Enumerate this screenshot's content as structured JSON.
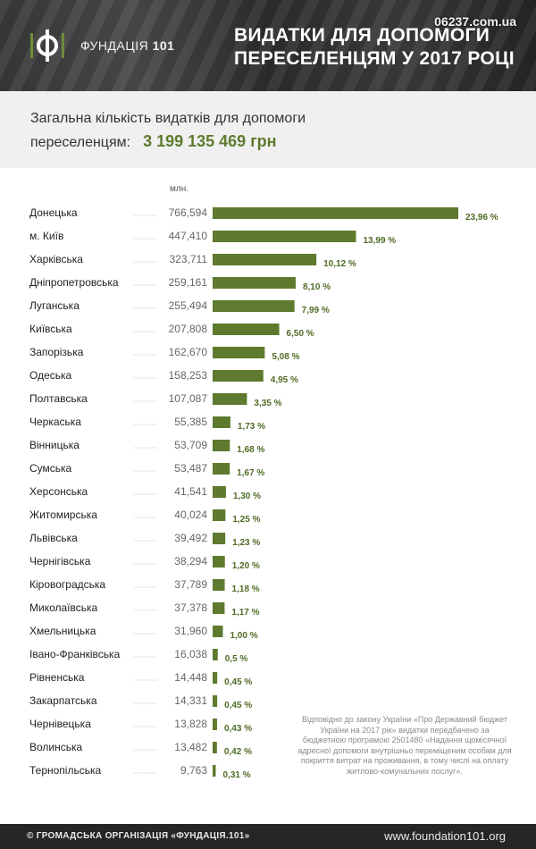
{
  "header": {
    "logo_text": "ФУНДАЦІЯ",
    "logo_number": "101",
    "title_line1": "ВИДАТКИ ДЛЯ ДОПОМОГИ",
    "title_line2": "ПЕРЕСЕЛЕНЦЯМ У 2017 РОЦІ",
    "source_badge": "06237.com.ua"
  },
  "summary": {
    "line1": "Загальна кількість видатків для допомоги",
    "line2": "переселенцям:",
    "total": "3 199 135 469 грн"
  },
  "note": "Відповідно до закону України «Про Державний бюджет України на 2017 рік» видатки передбачено за бюджетною програмою 2501480 «Надання щомісячної адресної допомоги внутрішньо переміщеним особам для покриття витрат на проживання, в тому числі на оплату житлово-комунальних послуг».",
  "footer": {
    "left": "© ГРОМАДСЬКА ОРГАНІЗАЦІЯ «ФУНДАЦІЯ.101»",
    "right": "www.foundation101.org"
  },
  "colors": {
    "bar": "#5d7a2e",
    "percent_text": "#4f6b26",
    "header_bg": "#3a3a3a",
    "summary_bg": "#f0f0f0"
  },
  "chart_data": {
    "type": "bar",
    "orientation": "horizontal",
    "unit_label": "млн.",
    "categories": [
      "Донецька",
      "м. Київ",
      "Харківська",
      "Дніпропетровська",
      "Луганська",
      "Київська",
      "Запорізька",
      "Одеська",
      "Полтавська",
      "Черкаська",
      "Вінницька",
      "Сумська",
      "Херсонська",
      "Житомирська",
      "Львівська",
      "Чернігівська",
      "Кіровоградська",
      "Миколаївська",
      "Хмельницька",
      "Івано-Франківська",
      "Рівненська",
      "Закарпатська",
      "Чернівецька",
      "Волинська",
      "Тернопільська"
    ],
    "values": [
      766.594,
      447.41,
      323.711,
      259.161,
      255.494,
      207.808,
      162.67,
      158.253,
      107.087,
      55.385,
      53.709,
      53.487,
      41.541,
      40.024,
      39.492,
      38.294,
      37.789,
      37.378,
      31.96,
      16.038,
      14.448,
      14.331,
      13.828,
      13.482,
      9.763
    ],
    "value_labels": [
      "766,594",
      "447,410",
      "323,711",
      "259,161",
      "255,494",
      "207,808",
      "162,670",
      "158,253",
      "107,087",
      "55,385",
      "53,709",
      "53,487",
      "41,541",
      "40,024",
      "39,492",
      "38,294",
      "37,789",
      "37,378",
      "31,960",
      "16,038",
      "14,448",
      "14,331",
      "13,828",
      "13,482",
      "9,763"
    ],
    "percent_labels": [
      "23,96 %",
      "13,99 %",
      "10,12 %",
      "8,10 %",
      "7,99 %",
      "6,50 %",
      "5,08 %",
      "4,95 %",
      "3,35 %",
      "1,73 %",
      "1,68 %",
      "1,67 %",
      "1,30 %",
      "1,25 %",
      "1,23 %",
      "1,20 %",
      "1,18 %",
      "1,17 %",
      "1,00 %",
      "0,5 %",
      "0,45 %",
      "0,45 %",
      "0,43 %",
      "0,42 %",
      "0,31 %"
    ],
    "xlim": [
      0,
      766.594
    ],
    "grid": false,
    "legend": "none"
  }
}
